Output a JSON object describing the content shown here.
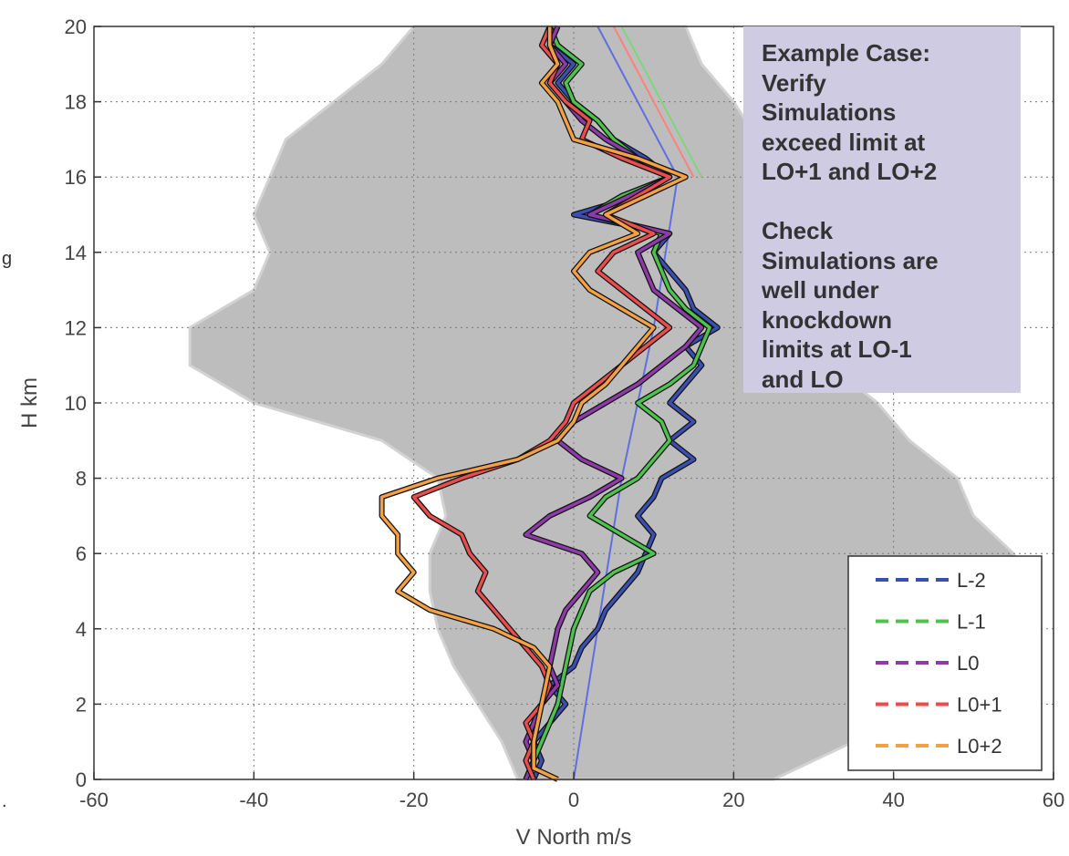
{
  "chart_data": {
    "type": "line",
    "xlabel": "V North m/s",
    "ylabel": "H km",
    "xlim": [
      -60,
      60
    ],
    "ylim": [
      0,
      20
    ],
    "xticks": [
      "-60",
      "-40",
      "-20",
      "0",
      "20",
      "40",
      "60"
    ],
    "yticks": [
      "0",
      "2",
      "4",
      "6",
      "8",
      "10",
      "12",
      "14",
      "16",
      "18",
      "20"
    ],
    "grid": true,
    "legend_position": "bottom-right",
    "background_envelope": {
      "color": "#bdbdbd",
      "left": [
        [
          -7,
          0
        ],
        [
          -9,
          1
        ],
        [
          -12,
          2
        ],
        [
          -15,
          3
        ],
        [
          -17,
          4
        ],
        [
          -18,
          5
        ],
        [
          -18,
          6
        ],
        [
          -16,
          7
        ],
        [
          -17,
          8
        ],
        [
          -24,
          9
        ],
        [
          -40,
          10
        ],
        [
          -48,
          11
        ],
        [
          -48,
          12
        ],
        [
          -40,
          13
        ],
        [
          -38,
          14
        ],
        [
          -40,
          15
        ],
        [
          -38,
          16
        ],
        [
          -36,
          17
        ],
        [
          -30,
          18
        ],
        [
          -24,
          19
        ],
        [
          -20,
          20
        ]
      ],
      "right": [
        [
          25,
          0
        ],
        [
          35,
          1
        ],
        [
          45,
          2
        ],
        [
          50,
          3
        ],
        [
          55,
          4
        ],
        [
          57,
          5
        ],
        [
          55,
          6
        ],
        [
          50,
          7
        ],
        [
          48,
          8
        ],
        [
          42,
          9
        ],
        [
          38,
          10
        ],
        [
          32,
          11
        ],
        [
          30,
          12
        ],
        [
          28,
          13
        ],
        [
          27,
          14
        ],
        [
          26,
          15
        ],
        [
          25,
          16
        ],
        [
          23,
          17
        ],
        [
          20,
          18
        ],
        [
          16,
          19
        ],
        [
          14,
          20
        ]
      ]
    },
    "series": [
      {
        "name": "L-2",
        "color": "#3a4fb0",
        "values": [
          [
            -5,
            0
          ],
          [
            -4,
            0.5
          ],
          [
            -5,
            1
          ],
          [
            -3,
            1.5
          ],
          [
            -1,
            2
          ],
          [
            -3,
            2.5
          ],
          [
            0,
            3
          ],
          [
            1,
            3.5
          ],
          [
            3,
            4
          ],
          [
            4,
            4.5
          ],
          [
            6,
            5
          ],
          [
            8,
            5.5
          ],
          [
            9,
            6
          ],
          [
            10,
            6.5
          ],
          [
            8,
            7
          ],
          [
            10,
            7.5
          ],
          [
            11,
            8
          ],
          [
            15,
            8.5
          ],
          [
            12,
            9
          ],
          [
            15,
            9.5
          ],
          [
            12,
            10
          ],
          [
            14,
            10.5
          ],
          [
            16,
            11
          ],
          [
            14,
            11.5
          ],
          [
            18,
            12
          ],
          [
            15,
            12.5
          ],
          [
            14,
            13
          ],
          [
            12,
            13.5
          ],
          [
            10,
            14
          ],
          [
            12,
            14.5
          ],
          [
            0,
            15
          ],
          [
            8,
            15.5
          ],
          [
            12,
            16
          ],
          [
            9,
            16.5
          ],
          [
            5,
            17
          ],
          [
            3,
            17.5
          ],
          [
            0,
            18
          ],
          [
            -2,
            18.5
          ],
          [
            0,
            19
          ],
          [
            -3,
            19.5
          ],
          [
            -2,
            20
          ]
        ]
      },
      {
        "name": "L-1",
        "color": "#4ec24e",
        "values": [
          [
            -6,
            0
          ],
          [
            -5,
            0.5
          ],
          [
            -4,
            1
          ],
          [
            -3,
            1.5
          ],
          [
            -2,
            2
          ],
          [
            -1,
            3
          ],
          [
            0,
            4
          ],
          [
            2,
            5
          ],
          [
            5,
            5.5
          ],
          [
            10,
            6
          ],
          [
            6,
            6.5
          ],
          [
            2,
            7
          ],
          [
            4,
            7.5
          ],
          [
            8,
            8
          ],
          [
            10,
            8.5
          ],
          [
            12,
            9
          ],
          [
            11,
            9.5
          ],
          [
            8,
            10
          ],
          [
            12,
            10.5
          ],
          [
            15,
            11
          ],
          [
            16,
            11.5
          ],
          [
            17,
            12
          ],
          [
            14,
            12.5
          ],
          [
            12,
            13
          ],
          [
            10,
            14
          ],
          [
            11,
            14.5
          ],
          [
            2,
            15
          ],
          [
            6,
            15.5
          ],
          [
            12,
            16
          ],
          [
            8,
            16.5
          ],
          [
            5,
            17
          ],
          [
            3,
            17.5
          ],
          [
            0,
            18
          ],
          [
            -1,
            18.5
          ],
          [
            1,
            19
          ],
          [
            -2,
            19.5
          ],
          [
            -3,
            20
          ]
        ]
      },
      {
        "name": "L0",
        "color": "#8e3aa8",
        "values": [
          [
            -6,
            0
          ],
          [
            -5,
            0.5
          ],
          [
            -6,
            1
          ],
          [
            -5,
            1.5
          ],
          [
            -4,
            2
          ],
          [
            -2,
            2.5
          ],
          [
            -3,
            3
          ],
          [
            -2,
            4
          ],
          [
            -1,
            4.5
          ],
          [
            1,
            5
          ],
          [
            3,
            5.5
          ],
          [
            1,
            6
          ],
          [
            -6,
            6.5
          ],
          [
            -3,
            7
          ],
          [
            2,
            7.5
          ],
          [
            6,
            8
          ],
          [
            1,
            8.5
          ],
          [
            -2,
            9
          ],
          [
            0,
            9.5
          ],
          [
            4,
            10
          ],
          [
            8,
            10.5
          ],
          [
            11,
            11
          ],
          [
            14,
            11.5
          ],
          [
            16,
            12
          ],
          [
            13,
            12.5
          ],
          [
            10,
            13
          ],
          [
            9,
            13.5
          ],
          [
            8,
            14
          ],
          [
            12,
            14.5
          ],
          [
            2,
            15
          ],
          [
            7,
            15.5
          ],
          [
            12,
            16
          ],
          [
            8,
            16.5
          ],
          [
            4,
            17
          ],
          [
            1,
            17.5
          ],
          [
            -1,
            18
          ],
          [
            -3,
            18.5
          ],
          [
            -1,
            19
          ],
          [
            -3,
            19.5
          ],
          [
            -2,
            20
          ]
        ]
      },
      {
        "name": "L0+1",
        "color": "#ea4d4d",
        "values": [
          [
            -5,
            0
          ],
          [
            -6,
            0.5
          ],
          [
            -5,
            1
          ],
          [
            -6,
            1.5
          ],
          [
            -4,
            2
          ],
          [
            -3,
            2.5
          ],
          [
            -4,
            3
          ],
          [
            -6,
            3.5
          ],
          [
            -8,
            4
          ],
          [
            -10,
            4.5
          ],
          [
            -12,
            5
          ],
          [
            -11,
            5.5
          ],
          [
            -13,
            6
          ],
          [
            -14,
            6.5
          ],
          [
            -18,
            7
          ],
          [
            -20,
            7.5
          ],
          [
            -14,
            8
          ],
          [
            -7,
            8.5
          ],
          [
            -3,
            9
          ],
          [
            -1,
            9.5
          ],
          [
            0,
            10
          ],
          [
            3,
            10.5
          ],
          [
            6,
            11
          ],
          [
            9,
            11.5
          ],
          [
            12,
            12
          ],
          [
            9,
            12.5
          ],
          [
            6,
            13
          ],
          [
            3,
            13.5
          ],
          [
            5,
            14
          ],
          [
            10,
            14.5
          ],
          [
            4,
            15
          ],
          [
            8,
            15.5
          ],
          [
            12,
            16
          ],
          [
            6,
            16.5
          ],
          [
            1,
            17
          ],
          [
            2,
            17.5
          ],
          [
            -1,
            18
          ],
          [
            -3,
            18.5
          ],
          [
            -2,
            19
          ],
          [
            -4,
            19.5
          ],
          [
            -3,
            20
          ]
        ]
      },
      {
        "name": "L0+2",
        "color": "#f4a144",
        "values": [
          [
            -2,
            0
          ],
          [
            -5,
            0.3
          ],
          [
            -5,
            1
          ],
          [
            -4,
            2
          ],
          [
            -3,
            3
          ],
          [
            -5,
            3.5
          ],
          [
            -10,
            4
          ],
          [
            -18,
            4.5
          ],
          [
            -22,
            5
          ],
          [
            -20,
            5.5
          ],
          [
            -22,
            6
          ],
          [
            -22,
            6.5
          ],
          [
            -24,
            7
          ],
          [
            -24,
            7.5
          ],
          [
            -17,
            8
          ],
          [
            -7,
            8.5
          ],
          [
            -2,
            9
          ],
          [
            0,
            9.5
          ],
          [
            1,
            10
          ],
          [
            4,
            10.5
          ],
          [
            6,
            11
          ],
          [
            8,
            11.5
          ],
          [
            10,
            12
          ],
          [
            6,
            12.5
          ],
          [
            2,
            13
          ],
          [
            0,
            13.5
          ],
          [
            2,
            14
          ],
          [
            8,
            14.5
          ],
          [
            4,
            15
          ],
          [
            9,
            15.5
          ],
          [
            14,
            16
          ],
          [
            8,
            16.5
          ],
          [
            0,
            17
          ],
          [
            -1,
            17.5
          ],
          [
            -2,
            18
          ],
          [
            -4,
            18.5
          ],
          [
            -2,
            19
          ],
          [
            -3,
            19.5
          ],
          [
            -3,
            20
          ]
        ]
      }
    ],
    "envelope_lines": [
      {
        "color": "#5f6fe0",
        "values": [
          [
            0,
            0
          ],
          [
            3,
            4
          ],
          [
            6,
            8
          ],
          [
            10,
            12
          ],
          [
            13,
            16
          ],
          [
            8,
            18
          ],
          [
            3,
            20
          ]
        ]
      },
      {
        "color": "#ff8080",
        "values": [
          [
            15,
            16
          ],
          [
            5,
            20
          ]
        ]
      },
      {
        "color": "#7cd67c",
        "values": [
          [
            16,
            16
          ],
          [
            6,
            20
          ]
        ]
      }
    ]
  },
  "callout": {
    "lines": [
      "Example Case:",
      "Verify",
      "Simulations",
      "exceed limit at",
      "LO+1 and LO+2"
    ],
    "lines2": [
      "Check",
      "Simulations are",
      "well under",
      "knockdown",
      "limits at LO-1",
      "and LO"
    ]
  },
  "cutoff_text": {
    "top": "g",
    "bottom": "."
  }
}
